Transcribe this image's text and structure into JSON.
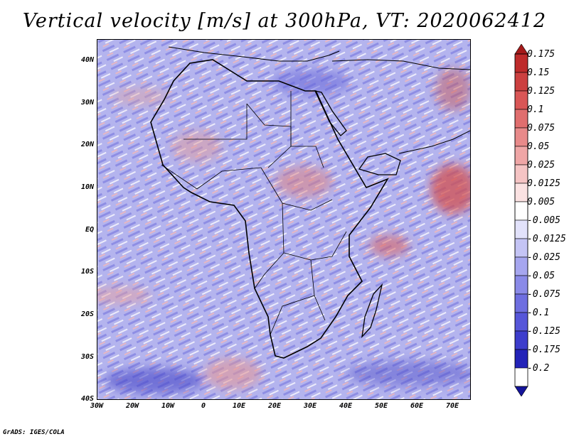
{
  "title": "Vertical velocity [m/s] at 300hPa, VT: 2020062412",
  "map": {
    "region": "Africa",
    "variable": "vertical velocity",
    "units": "m/s",
    "level": "300hPa",
    "valid_time": "2020062412",
    "lat_labels": [
      "40N",
      "30N",
      "20N",
      "10N",
      "EQ",
      "10S",
      "20S",
      "30S",
      "40S"
    ],
    "lon_labels": [
      "30W",
      "20W",
      "10W",
      "0",
      "10E",
      "20E",
      "30E",
      "40E",
      "50E",
      "60E",
      "70E"
    ]
  },
  "colorbar": {
    "labels": [
      "0.175",
      "0.15",
      "0.125",
      "0.1",
      "0.075",
      "0.05",
      "0.025",
      "0.0125",
      "0.005",
      "-0.005",
      "-0.0125",
      "-0.025",
      "-0.05",
      "-0.075",
      "-0.1",
      "-0.125",
      "-0.175",
      "-0.2"
    ],
    "colors": [
      "#a51a1a",
      "#be2b2b",
      "#cc4040",
      "#d95656",
      "#e06e6e",
      "#e88a8a",
      "#efa6a6",
      "#f5c4c4",
      "#fbe2e2",
      "#ffffff",
      "#e2e2fb",
      "#c4c4f5",
      "#a6a6ef",
      "#8a8ae8",
      "#6e6ee0",
      "#5656d9",
      "#3d3dcc",
      "#2323b8",
      "#14149a"
    ]
  },
  "footer": "GrADS: IGES/COLA"
}
